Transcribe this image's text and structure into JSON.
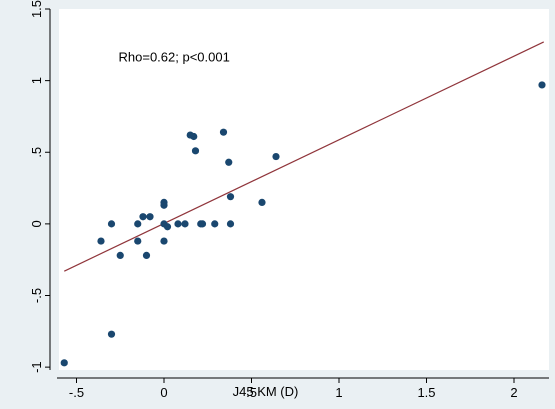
{
  "chart_data": {
    "type": "scatter",
    "title": "",
    "xlabel": "J45 KM (D)",
    "ylabel": "",
    "xlim": [
      -0.6,
      2.2
    ],
    "ylim": [
      -1.02,
      1.5
    ],
    "x_ticks": [
      {
        "value": -0.5,
        "label": "-.5"
      },
      {
        "value": 0,
        "label": "0"
      },
      {
        "value": 0.5,
        "label": ".5"
      },
      {
        "value": 1,
        "label": "1"
      },
      {
        "value": 1.5,
        "label": "1.5"
      },
      {
        "value": 2,
        "label": "2"
      }
    ],
    "y_ticks": [
      {
        "value": -1,
        "label": "-1"
      },
      {
        "value": -0.5,
        "label": "-.5"
      },
      {
        "value": 0,
        "label": "0"
      },
      {
        "value": 0.5,
        "label": ".5"
      },
      {
        "value": 1,
        "label": "1"
      },
      {
        "value": 1.5,
        "label": "1.5"
      }
    ],
    "grid": false,
    "legend": "none",
    "annotation": {
      "text": "Rho=0.62; p<0.001",
      "x": -0.26,
      "y": 1.17
    },
    "points": [
      {
        "x": -0.57,
        "y": -0.97
      },
      {
        "x": -0.36,
        "y": -0.12
      },
      {
        "x": -0.3,
        "y": 0.0
      },
      {
        "x": -0.3,
        "y": -0.77
      },
      {
        "x": -0.25,
        "y": -0.22
      },
      {
        "x": -0.15,
        "y": 0.0
      },
      {
        "x": -0.15,
        "y": -0.12
      },
      {
        "x": -0.12,
        "y": 0.05
      },
      {
        "x": -0.1,
        "y": -0.22
      },
      {
        "x": -0.08,
        "y": 0.05
      },
      {
        "x": 0.0,
        "y": 0.15
      },
      {
        "x": 0.0,
        "y": 0.13
      },
      {
        "x": 0.0,
        "y": 0.0
      },
      {
        "x": 0.0,
        "y": -0.12
      },
      {
        "x": 0.02,
        "y": -0.02
      },
      {
        "x": 0.08,
        "y": 0.0
      },
      {
        "x": 0.12,
        "y": 0.0
      },
      {
        "x": 0.15,
        "y": 0.62
      },
      {
        "x": 0.17,
        "y": 0.61
      },
      {
        "x": 0.18,
        "y": 0.51
      },
      {
        "x": 0.21,
        "y": 0.0
      },
      {
        "x": 0.22,
        "y": 0.0
      },
      {
        "x": 0.29,
        "y": 0.0
      },
      {
        "x": 0.34,
        "y": 0.64
      },
      {
        "x": 0.37,
        "y": 0.43
      },
      {
        "x": 0.38,
        "y": 0.19
      },
      {
        "x": 0.38,
        "y": 0.0
      },
      {
        "x": 0.56,
        "y": 0.15
      },
      {
        "x": 0.64,
        "y": 0.47
      },
      {
        "x": 2.16,
        "y": 0.97
      }
    ],
    "fit_line": {
      "x": [
        -0.57,
        2.17
      ],
      "y": [
        -0.33,
        1.27
      ]
    },
    "colors": {
      "background": "#eaf0f3",
      "plot_bg": "#ffffff",
      "point": "#1a476f",
      "fit_line": "#90353b",
      "axis": "#000000"
    }
  }
}
